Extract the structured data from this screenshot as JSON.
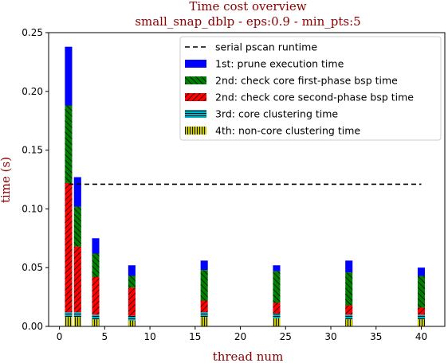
{
  "chart_data": {
    "type": "bar",
    "stacked": true,
    "title": "Time cost overview",
    "subtitle": "small_snap_dblp - eps:0.9 - min_pts:5",
    "xlabel": "thread num",
    "ylabel": "time (s)",
    "xlim": [
      -1.2,
      42.6
    ],
    "ylim": [
      0,
      0.25
    ],
    "xticks": [
      0,
      5,
      10,
      15,
      20,
      25,
      30,
      35,
      40
    ],
    "yticks": [
      0.0,
      0.05,
      0.1,
      0.15,
      0.2,
      0.25
    ],
    "ytick_labels": [
      "0.00",
      "0.05",
      "0.10",
      "0.15",
      "0.20",
      "0.25"
    ],
    "grid": false,
    "legend_position": "top-right",
    "title_color": "#8b0000",
    "x": [
      1,
      2,
      4,
      8,
      16,
      24,
      32,
      40
    ],
    "reference_line": {
      "name": "serial pscan runtime",
      "value": 0.121,
      "x_range": [
        1,
        40
      ],
      "color": "#000000",
      "style": "dashed"
    },
    "series": [
      {
        "name": "4th: non-core clustering time",
        "color": "#c8c800",
        "hatch": "vertical",
        "values": [
          0.008,
          0.008,
          0.006,
          0.005,
          0.008,
          0.007,
          0.006,
          0.006
        ]
      },
      {
        "name": "3rd: core clustering time",
        "color": "#00b4c8",
        "hatch": "horizontal",
        "values": [
          0.004,
          0.004,
          0.004,
          0.004,
          0.004,
          0.004,
          0.004,
          0.004
        ]
      },
      {
        "name": "2nd: check core second-phase bsp time",
        "color": "#ff0000",
        "hatch": "diagonal",
        "values": [
          0.11,
          0.056,
          0.032,
          0.024,
          0.01,
          0.009,
          0.008,
          0.006
        ]
      },
      {
        "name": "2nd: check core first-phase bsp time",
        "color": "#008000",
        "hatch": "diagonal-back",
        "values": [
          0.066,
          0.034,
          0.02,
          0.01,
          0.026,
          0.027,
          0.028,
          0.027
        ]
      },
      {
        "name": "1st: prune execution time",
        "color": "#0000ff",
        "hatch": "none",
        "values": [
          0.05,
          0.025,
          0.013,
          0.009,
          0.008,
          0.005,
          0.01,
          0.007
        ]
      }
    ],
    "legend_order": [
      "serial pscan runtime",
      "1st: prune execution time",
      "2nd: check core first-phase bsp time",
      "2nd: check core second-phase bsp time",
      "3rd: core clustering time",
      "4th: non-core clustering time"
    ]
  }
}
